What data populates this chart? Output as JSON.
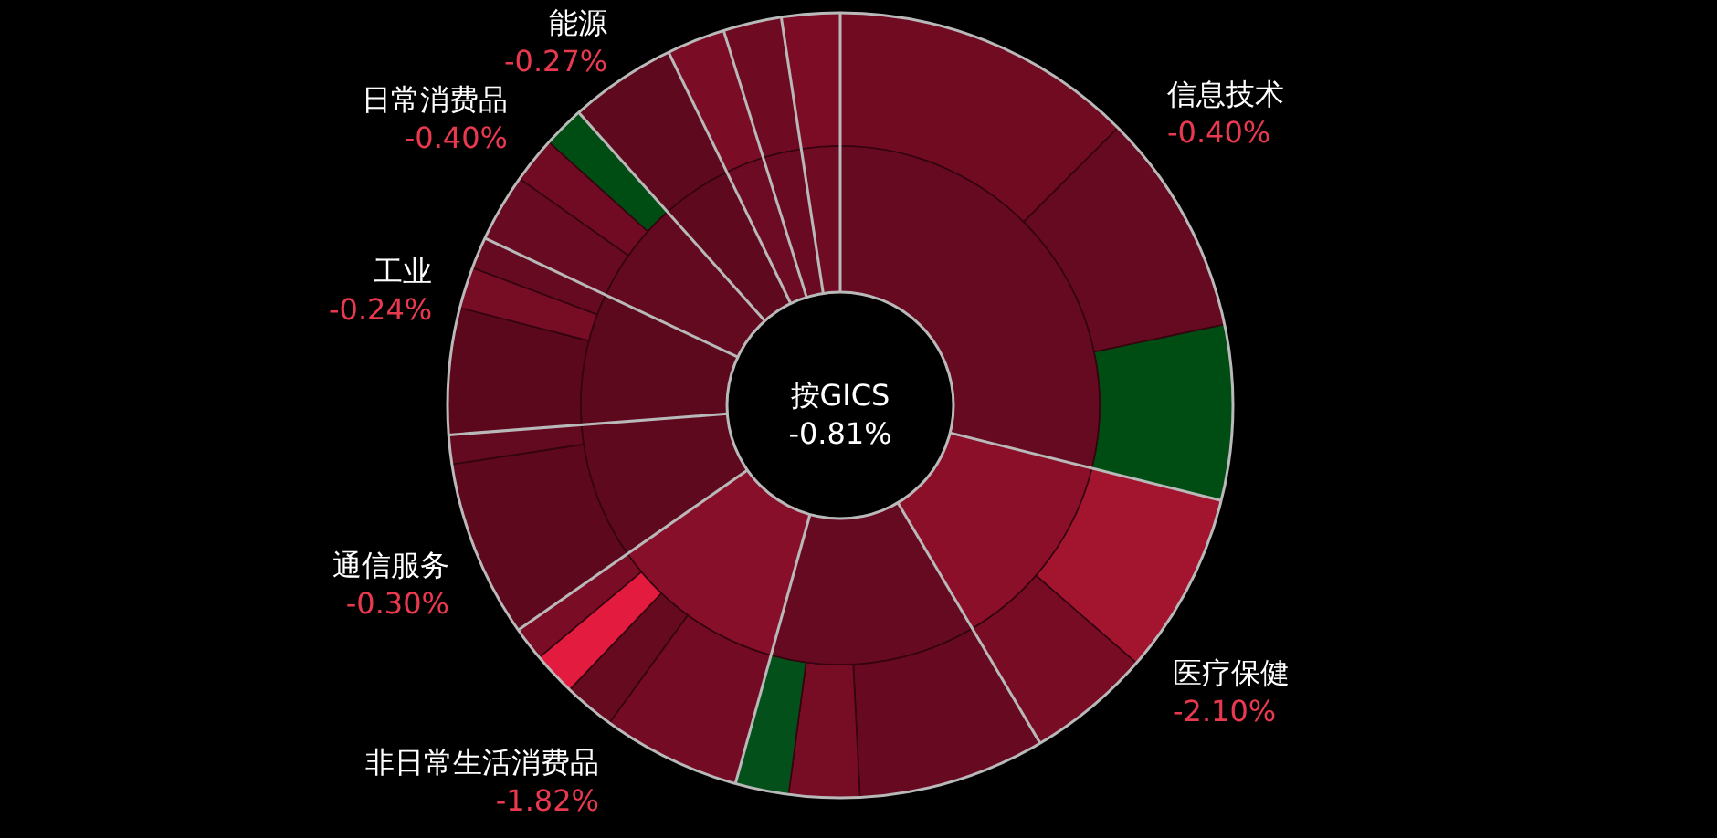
{
  "chart_data": {
    "type": "donut",
    "title": "按GICS\n-0.81%",
    "categories": [
      "信息技术\n-0.40%",
      null,
      null,
      "医疗保健\n-2.10%",
      null,
      null,
      null,
      null,
      "非日常生活消费品\n-1.82%",
      null,
      null,
      null,
      "通信服务\n-0.30%",
      null,
      "工业\n-0.24%",
      null,
      null,
      "日常消费品\n-0.40%",
      null,
      null,
      "能源\n-0.27%",
      null,
      null,
      null
    ],
    "series": [
      {
        "values": [
          12.5,
          9.2,
          7.2,
          7.5,
          5.1,
          7.7,
          2.9,
          2.2,
          5.7,
          2.1,
          1.8,
          1.4,
          7.3,
          1.2,
          5.2,
          1.7,
          1.3,
          2.8,
          1.9,
          1.7,
          4.4,
          2.4,
          2.4,
          2.4
        ],
        "colors": [
          "#700b22",
          "#650a20",
          "#004d14",
          "#a3152f",
          "#780c25",
          "#670a21",
          "#770c25",
          "#03501a",
          "#730b24",
          "#660a20",
          "#e31b3f",
          "#7a0c26",
          "#5d081d",
          "#630a20",
          "#5b081c",
          "#770c25",
          "#660a21",
          "#680a21",
          "#700b23",
          "#004d13",
          "#5f091e",
          "#7a0c26",
          "#6e0b23",
          "#7c0c26"
        ]
      },
      {
        "values": [
          28.9,
          null,
          null,
          12.6,
          null,
          12.8,
          null,
          null,
          11.0,
          null,
          null,
          null,
          8.5,
          null,
          8.2,
          null,
          null,
          6.4,
          null,
          null,
          4.4,
          2.4,
          2.4,
          2.4
        ],
        "colors": [
          "#650a20",
          null,
          null,
          "#8c0f2a",
          null,
          "#660a21",
          null,
          null,
          "#880f2a",
          null,
          null,
          null,
          "#5e091e",
          null,
          "#5c081d",
          null,
          null,
          "#630a20",
          null,
          null,
          "#5f091e",
          "#6c0b23",
          "#6a0a22",
          "#6f0b23"
        ]
      }
    ]
  }
}
